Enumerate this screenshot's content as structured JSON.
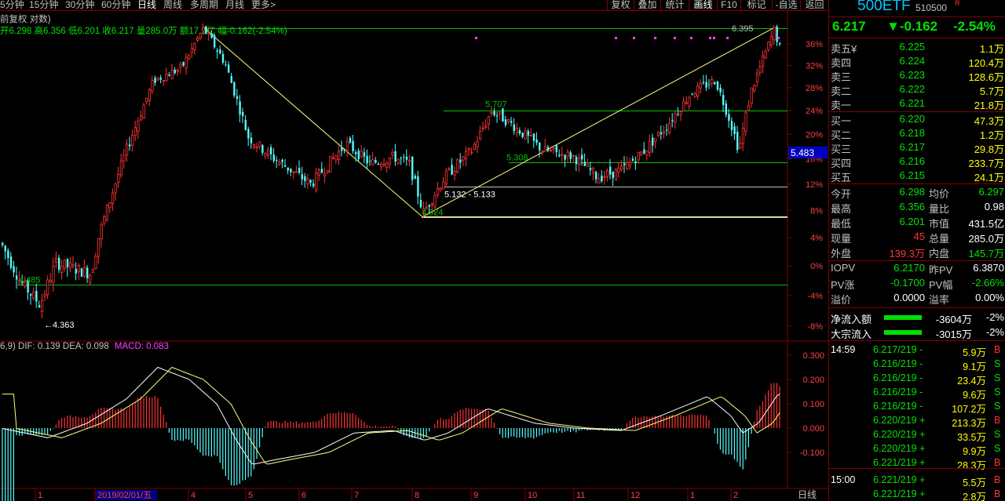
{
  "toolbar": {
    "tabs": [
      "5分钟",
      "15分钟",
      "30分钟",
      "60分钟",
      "日线",
      "周线",
      "多周期",
      "月线",
      "更多>"
    ],
    "active_tab": "日线",
    "right_buttons": [
      "复权",
      "叠加",
      "统计",
      "画线",
      "F10",
      "标记",
      "-自选",
      "返回"
    ]
  },
  "info": {
    "adjust_label": "前复权 对数)",
    "quote_line": "开6.298 高6.356 低6.201 收6.217 量285.0万 额17.9亿 幅-0.162(-2.54%)",
    "macd_line_prefix": "6,9) DIF: 0.139 DEA: 0.098",
    "macd_value": "MACD: 0.083"
  },
  "chart_data": [
    {
      "type": "candlestick",
      "name": "price",
      "y_axis_ticks": [
        "36%",
        "32%",
        "28%",
        "24%",
        "20%",
        "16%",
        "12%",
        "8%",
        "4%",
        "0%",
        "-4%",
        "-8%"
      ],
      "log_scale": true,
      "annotations": [
        "6.395",
        "5.707",
        "5.308",
        "5.132 - 5.133",
        "4.924",
        "4.485",
        "4.363"
      ],
      "crosshair_price": "5.483",
      "x_ticks": [
        "1",
        "2019/02/01/五",
        "4",
        "5",
        "6",
        "7",
        "8",
        "9",
        "10",
        "11",
        "12",
        "1",
        "2"
      ],
      "x_axis_label": "日线",
      "levels": [
        6.395,
        5.707,
        5.308,
        5.132,
        4.924,
        4.485
      ]
    },
    {
      "type": "bar",
      "name": "MACD",
      "y_axis_ticks": [
        "0.300",
        "0.200",
        "0.100",
        "0.000",
        "-0.100"
      ],
      "series": [
        {
          "name": "DIF",
          "last": 0.139
        },
        {
          "name": "DEA",
          "last": 0.098
        },
        {
          "name": "MACD",
          "last": 0.083
        }
      ]
    }
  ],
  "quote": {
    "name": "500ETF",
    "code": "510500",
    "flag": "R",
    "price": "6.217",
    "change": "▼-0.162",
    "pct": "-2.54%"
  },
  "orderbook": {
    "asks": [
      {
        "label": "卖五",
        "mark": "¥",
        "price": "6.225",
        "vol": "1.1万"
      },
      {
        "label": "卖四",
        "mark": "",
        "price": "6.224",
        "vol": "120.4万"
      },
      {
        "label": "卖三",
        "mark": "",
        "price": "6.223",
        "vol": "128.6万"
      },
      {
        "label": "卖二",
        "mark": "",
        "price": "6.222",
        "vol": "5.7万"
      },
      {
        "label": "卖一",
        "mark": "",
        "price": "6.221",
        "vol": "21.8万"
      }
    ],
    "bids": [
      {
        "label": "买一",
        "price": "6.220",
        "vol": "47.3万"
      },
      {
        "label": "买二",
        "price": "6.218",
        "vol": "1.2万"
      },
      {
        "label": "买三",
        "price": "6.217",
        "vol": "29.8万"
      },
      {
        "label": "买四",
        "price": "6.216",
        "vol": "233.7万"
      },
      {
        "label": "买五",
        "price": "6.215",
        "vol": "24.1万"
      }
    ]
  },
  "stats": {
    "open_label": "今开",
    "open": "6.298",
    "avg_label": "均价",
    "avg": "6.297",
    "high_label": "最高",
    "high": "6.356",
    "ratio_label": "量比",
    "ratio": "0.98",
    "low_label": "最低",
    "low": "6.201",
    "mcap_label": "市值",
    "mcap": "431.5亿",
    "cur_label": "现量",
    "cur": "45",
    "total_label": "总量",
    "total": "285.0万",
    "out_label": "外盘",
    "out": "139.3万",
    "in_label": "内盘",
    "in": "145.7万"
  },
  "iopv": {
    "iopv_label": "IOPV",
    "iopv": "6.2170",
    "prev_label": "昨PV",
    "prev": "6.3870",
    "pvchg_label": "PV涨",
    "pvchg": "-0.1700",
    "pvpct_label": "PV幅",
    "pvpct": "-2.66%",
    "prem_label": "溢价",
    "prem": "0.0000",
    "premrate_label": "溢率",
    "premrate": "0.00%"
  },
  "flows": [
    {
      "label": "净流入额",
      "value": "-3604万",
      "pct": "-2%"
    },
    {
      "label": "大宗流入",
      "value": "-3015万",
      "pct": "-2%"
    }
  ],
  "ticks": [
    {
      "time": "14:59",
      "price": "6.217/219 -",
      "vol": "5.9万",
      "side": "B"
    },
    {
      "time": "",
      "price": "6.216/219 -",
      "vol": "9.1万",
      "side": "S"
    },
    {
      "time": "",
      "price": "6.216/219 -",
      "vol": "23.4万",
      "side": "S"
    },
    {
      "time": "",
      "price": "6.216/219 -",
      "vol": "9.6万",
      "side": "S"
    },
    {
      "time": "",
      "price": "6.216/219 -",
      "vol": "107.2万",
      "side": "S"
    },
    {
      "time": "",
      "price": "6.220/219 +",
      "vol": "213.3万",
      "side": "B"
    },
    {
      "time": "",
      "price": "6.220/219 +",
      "vol": "33.5万",
      "side": "S"
    },
    {
      "time": "",
      "price": "6.220/219 +",
      "vol": "9.9万",
      "side": "S"
    },
    {
      "time": "",
      "price": "6.221/219 +",
      "vol": "28.3万",
      "side": "B"
    },
    {
      "time": "15:00",
      "price": "6.221/219 +",
      "vol": "5.5万",
      "side": "B"
    },
    {
      "time": "",
      "price": "6.221/219 +",
      "vol": "2.8万",
      "side": "B"
    }
  ],
  "colors": {
    "up": "#ff3333",
    "down": "#54ffff",
    "level": "#00c000",
    "trend": "#ffff80",
    "dea": "#ffff80",
    "dif": "#ffffff",
    "frame": "#800000"
  }
}
